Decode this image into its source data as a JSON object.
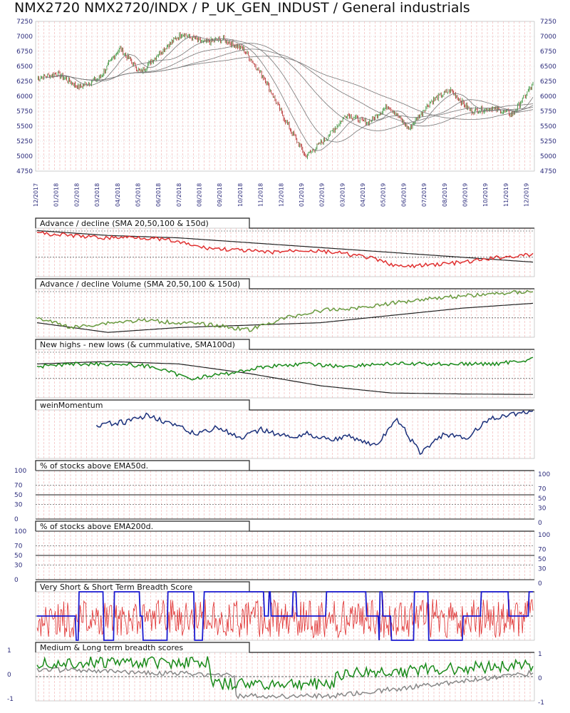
{
  "title": "NMX2720 NMX2720/INDX / P_UK_GEN_INDUST / General industrials",
  "colors": {
    "price_up": "#2a8a2a",
    "price_down": "#b02020",
    "ma": "#777777",
    "ad": "#e03030",
    "adv": "#6a9a40",
    "nh": "#1a8a1a",
    "wein": "#1a2f7a",
    "bs_red": "#e03030",
    "bs_blue": "#1a1ad0",
    "ml_green": "#1a8a1a",
    "ml_gray": "#888888",
    "grid": "#f2b8b8"
  },
  "chart_data": [
    {
      "type": "line",
      "title": "NMX2720 NMX2720/INDX / P_UK_GEN_INDUST / General industrials",
      "x": [
        "12/2017",
        "01/2018",
        "02/2018",
        "03/2018",
        "04/2018",
        "05/2018",
        "06/2018",
        "07/2018",
        "08/2018",
        "09/2018",
        "10/2018",
        "11/2018",
        "12/2018",
        "01/2019",
        "02/2019",
        "03/2019",
        "04/2019",
        "05/2019",
        "06/2019",
        "07/2019",
        "08/2019",
        "09/2019",
        "10/2019",
        "11/2019",
        "12/2019"
      ],
      "ylim": [
        4750,
        7250
      ],
      "yticks": [
        4750,
        5000,
        5250,
        5500,
        5750,
        6000,
        6250,
        6500,
        6750,
        7000,
        7250
      ],
      "series": [
        {
          "values": [
            6300,
            6380,
            6150,
            6300,
            6800,
            6400,
            6750,
            7050,
            6900,
            6950,
            6780,
            6300,
            5600,
            5000,
            5300,
            5700,
            5550,
            5850,
            5450,
            5900,
            6100,
            5750,
            5800,
            5700,
            6200
          ]
        }
      ]
    },
    {
      "type": "line",
      "title": "Advance / decline (SMA 20,50,100 & 150d)"
    },
    {
      "type": "line",
      "title": "Advance / decline Volume (SMA 20,50,100 & 150d)"
    },
    {
      "type": "line",
      "title": "New highs - new lows (& cummulative, SMA100d)"
    },
    {
      "type": "line",
      "title": "weinMomentum"
    },
    {
      "type": "line",
      "title": "% of stocks above EMA50d.",
      "yticks": [
        100,
        70,
        50,
        30,
        0
      ]
    },
    {
      "type": "line",
      "title": "% of stocks above EMA200d.",
      "yticks": [
        100,
        70,
        50,
        30,
        0
      ]
    },
    {
      "type": "line",
      "title": "Very Short & Short Term Breadth Score"
    },
    {
      "type": "line",
      "title": "Medium & Long term breadth scores",
      "yticks": [
        1,
        0,
        -1
      ]
    }
  ]
}
